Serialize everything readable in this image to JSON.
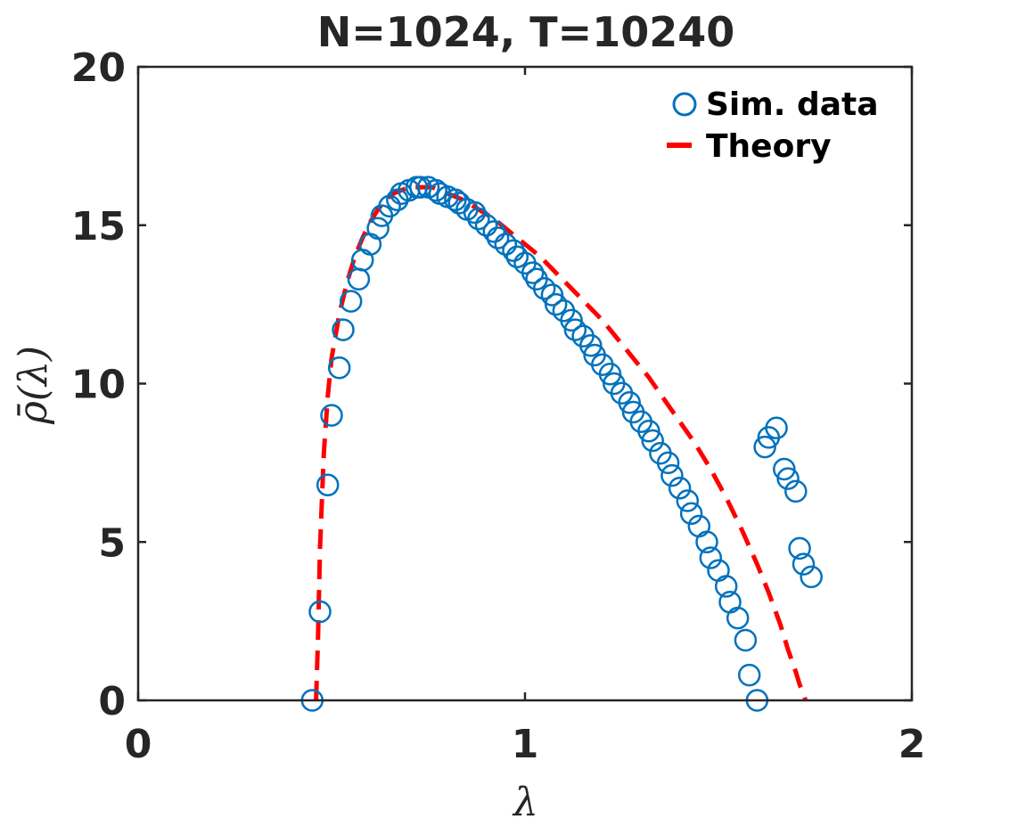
{
  "chart_data": {
    "type": "scatter",
    "title": "N=1024, T=10240",
    "xlabel": "λ",
    "ylabel": "ρ̄(λ)",
    "xlim": [
      0,
      2
    ],
    "ylim": [
      0,
      20
    ],
    "xticks": [
      "0",
      "1",
      "2"
    ],
    "yticks": [
      "0",
      "5",
      "10",
      "15",
      "20"
    ],
    "grid": false,
    "legend": "top-right",
    "colors": {
      "sim": "#0072BD",
      "theory": "#FF0000",
      "axis": "#262626"
    },
    "series": [
      {
        "name": "Sim. data",
        "style": "markers",
        "x": [
          0.45,
          0.47,
          0.49,
          0.5,
          0.52,
          0.53,
          0.55,
          0.57,
          0.58,
          0.6,
          0.62,
          0.63,
          0.65,
          0.67,
          0.68,
          0.7,
          0.72,
          0.73,
          0.75,
          0.77,
          0.78,
          0.8,
          0.82,
          0.83,
          0.85,
          0.87,
          0.88,
          0.9,
          0.92,
          0.93,
          0.95,
          0.97,
          0.98,
          1.0,
          1.02,
          1.03,
          1.05,
          1.07,
          1.08,
          1.1,
          1.12,
          1.13,
          1.15,
          1.17,
          1.18,
          1.2,
          1.22,
          1.23,
          1.25,
          1.27,
          1.28,
          1.3,
          1.32,
          1.33,
          1.35,
          1.37,
          1.38,
          1.4,
          1.42,
          1.43,
          1.45,
          1.47,
          1.48,
          1.5,
          1.52,
          1.53,
          1.55,
          1.57,
          1.58,
          1.6,
          1.62,
          1.63,
          1.65,
          1.67,
          1.68,
          1.7,
          1.71,
          1.72,
          1.74
        ],
        "y": [
          0.0,
          2.8,
          6.8,
          9.0,
          10.5,
          11.7,
          12.6,
          13.3,
          13.9,
          14.4,
          14.9,
          15.3,
          15.6,
          15.8,
          16.0,
          16.1,
          16.2,
          16.2,
          16.2,
          16.1,
          16.0,
          15.9,
          15.8,
          15.7,
          15.5,
          15.4,
          15.2,
          15.0,
          14.8,
          14.6,
          14.4,
          14.2,
          14.0,
          13.8,
          13.5,
          13.3,
          13.0,
          12.8,
          12.5,
          12.3,
          12.0,
          11.7,
          11.5,
          11.2,
          10.9,
          10.6,
          10.3,
          10.0,
          9.7,
          9.4,
          9.1,
          8.8,
          8.5,
          8.2,
          7.8,
          7.5,
          7.1,
          6.7,
          6.3,
          5.9,
          5.5,
          5.0,
          4.5,
          4.1,
          3.6,
          3.1,
          2.6,
          1.9,
          0.8,
          0.0,
          8.0,
          8.3,
          8.6,
          7.3,
          7.0,
          6.6,
          4.8,
          4.3,
          3.9
        ],
        "x_sorted_note": ""
      },
      {
        "name": "Theory",
        "style": "dashed-line",
        "x": [
          0.46,
          0.465,
          0.47,
          0.48,
          0.49,
          0.5,
          0.52,
          0.54,
          0.56,
          0.58,
          0.6,
          0.62,
          0.64,
          0.66,
          0.68,
          0.7,
          0.72,
          0.74,
          0.76,
          0.78,
          0.8,
          0.84,
          0.88,
          0.92,
          0.96,
          1.0,
          1.04,
          1.08,
          1.12,
          1.16,
          1.2,
          1.24,
          1.28,
          1.32,
          1.36,
          1.4,
          1.44,
          1.48,
          1.52,
          1.56,
          1.6,
          1.63,
          1.66,
          1.68,
          1.7,
          1.71,
          1.72,
          1.725
        ],
        "y": [
          0.0,
          2.0,
          4.8,
          7.8,
          9.6,
          10.8,
          12.2,
          13.2,
          14.0,
          14.6,
          15.1,
          15.5,
          15.8,
          16.0,
          16.1,
          16.2,
          16.2,
          16.2,
          16.2,
          16.1,
          16.0,
          15.8,
          15.5,
          15.2,
          14.8,
          14.4,
          14.0,
          13.5,
          13.0,
          12.5,
          12.0,
          11.4,
          10.8,
          10.2,
          9.5,
          8.8,
          8.1,
          7.3,
          6.4,
          5.4,
          4.3,
          3.4,
          2.4,
          1.6,
          0.9,
          0.5,
          0.2,
          0.0
        ]
      }
    ]
  }
}
